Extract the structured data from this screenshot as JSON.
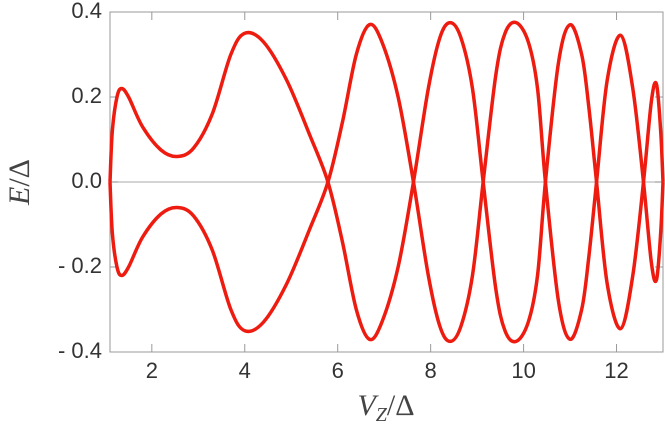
{
  "chart_data": {
    "type": "line",
    "xlabel": [
      "V",
      "Z",
      "/Δ"
    ],
    "ylabel": [
      "E",
      "/Δ"
    ],
    "xlim": [
      1.1,
      13.0
    ],
    "ylim": [
      -0.4,
      0.4
    ],
    "xticks": [
      2,
      4,
      6,
      8,
      10,
      12
    ],
    "yticks": [
      {
        "value": -0.4,
        "label": "- 0.4"
      },
      {
        "value": -0.2,
        "label": "- 0.2"
      },
      {
        "value": 0,
        "label": "0.0"
      },
      0.2,
      0.4
    ],
    "x": [
      1.1,
      1.15,
      1.25,
      1.35,
      1.5,
      1.8,
      2.2,
      2.55,
      2.9,
      3.3,
      3.7,
      4.0,
      4.4,
      4.9,
      5.4,
      5.79,
      6.1,
      6.4,
      6.68,
      6.95,
      7.3,
      7.63,
      7.95,
      8.2,
      8.42,
      8.65,
      8.9,
      9.13,
      9.4,
      9.6,
      9.84,
      10.1,
      10.3,
      10.47,
      10.75,
      11.0,
      11.25,
      11.4,
      11.57,
      11.8,
      12.09,
      12.35,
      12.58,
      12.75,
      12.86,
      12.95,
      13.0
    ],
    "series": [
      {
        "color": "#ee1c10",
        "values": [
          0,
          0.12,
          0.2,
          0.22,
          0.2,
          0.13,
          0.075,
          0.06,
          0.08,
          0.16,
          0.3,
          0.35,
          0.33,
          0.24,
          0.11,
          0,
          -0.14,
          -0.3,
          -0.37,
          -0.33,
          -0.2,
          0,
          0.22,
          0.34,
          0.375,
          0.34,
          0.22,
          0,
          -0.25,
          -0.35,
          -0.375,
          -0.33,
          -0.22,
          0,
          0.28,
          0.37,
          0.3,
          0.18,
          0,
          -0.24,
          -0.345,
          -0.22,
          0,
          0.19,
          0.23,
          0.12,
          0
        ]
      },
      {
        "color": "#ee1c10",
        "values": [
          0,
          -0.12,
          -0.2,
          -0.22,
          -0.2,
          -0.13,
          -0.075,
          -0.06,
          -0.08,
          -0.16,
          -0.3,
          -0.35,
          -0.33,
          -0.24,
          -0.11,
          0,
          0.14,
          0.3,
          0.37,
          0.33,
          0.2,
          0,
          -0.22,
          -0.34,
          -0.375,
          -0.34,
          -0.22,
          0,
          0.25,
          0.35,
          0.375,
          0.33,
          0.22,
          0,
          -0.28,
          -0.37,
          -0.3,
          -0.18,
          0,
          0.24,
          0.345,
          0.22,
          0,
          -0.19,
          -0.23,
          -0.12,
          0
        ]
      }
    ],
    "zero_line": true
  }
}
